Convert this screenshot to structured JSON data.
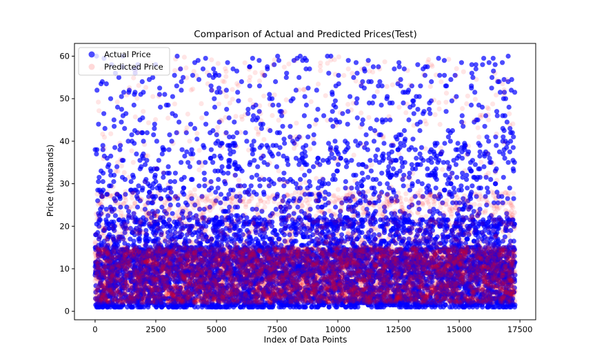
{
  "chart_data": {
    "type": "scatter",
    "title": "Comparison of Actual and Predicted Prices(Test)",
    "xlabel": "Index of Data Points",
    "ylabel": "Price (thousands)",
    "xlim": [
      -850,
      18150
    ],
    "ylim": [
      -2,
      63
    ],
    "xticks": [
      0,
      2500,
      5000,
      7500,
      10000,
      12500,
      15000,
      17500
    ],
    "yticks": [
      0,
      10,
      20,
      30,
      40,
      50,
      60
    ],
    "legend_position": "top-left",
    "grid": false,
    "n_points_each_series": 17300,
    "series": [
      {
        "name": "Actual Price",
        "color": "#0000ff",
        "alpha": 0.7,
        "y_range": [
          1,
          60
        ],
        "distribution": "right-skewed; dense 1–20, bands 20–40, sparse 40–60"
      },
      {
        "name": "Predicted Price",
        "color": "#ff0000",
        "alpha": 0.1,
        "y_range": [
          1,
          60
        ],
        "distribution": "concentrated 2–15, fading above 25"
      }
    ]
  }
}
